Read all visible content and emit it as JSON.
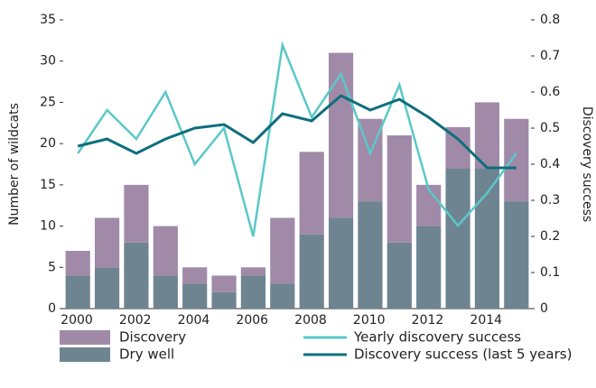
{
  "chart_data": {
    "type": "stacked-bar-line",
    "categories": [
      "2000",
      null,
      "2002",
      null,
      "2004",
      null,
      "2006",
      null,
      "2008",
      null,
      "2010",
      null,
      "2012",
      null,
      "2014",
      null
    ],
    "series": [
      {
        "name": "Dry well",
        "color": "#6e8491",
        "kind": "bar",
        "values": [
          4,
          5,
          8,
          4,
          3,
          2,
          4,
          3,
          9,
          11,
          13,
          8,
          10,
          17,
          17,
          13
        ]
      },
      {
        "name": "Discovery",
        "color": "#a08aa8",
        "kind": "bar",
        "values": [
          3,
          6,
          7,
          6,
          2,
          2,
          1,
          8,
          10,
          20,
          10,
          13,
          5,
          5,
          8,
          10
        ]
      },
      {
        "name": "Yearly discovery success",
        "color": "#5bc8c8",
        "kind": "line",
        "axis": "y2",
        "values": [
          0.43,
          0.55,
          0.47,
          0.6,
          0.4,
          0.5,
          0.2,
          0.73,
          0.53,
          0.65,
          0.43,
          0.62,
          0.33,
          0.23,
          0.32,
          0.43
        ]
      },
      {
        "name": "Discovery success (last 5 years)",
        "color": "#0e6e7c",
        "kind": "line",
        "axis": "y2",
        "values": [
          0.45,
          0.47,
          0.43,
          0.47,
          0.5,
          0.51,
          0.46,
          0.54,
          0.52,
          0.59,
          0.55,
          0.58,
          0.53,
          0.47,
          0.39,
          0.39
        ]
      }
    ],
    "ylabel": "Number of wildcats",
    "y2label": "Discovery success",
    "ylim": [
      0,
      35
    ],
    "yticks": [
      0,
      5,
      10,
      15,
      20,
      25,
      30,
      35
    ],
    "y2lim": [
      0,
      0.8
    ],
    "y2ticks": [
      0,
      0.1,
      0.2,
      0.3,
      0.4,
      0.5,
      0.6,
      0.7,
      0.8
    ]
  }
}
